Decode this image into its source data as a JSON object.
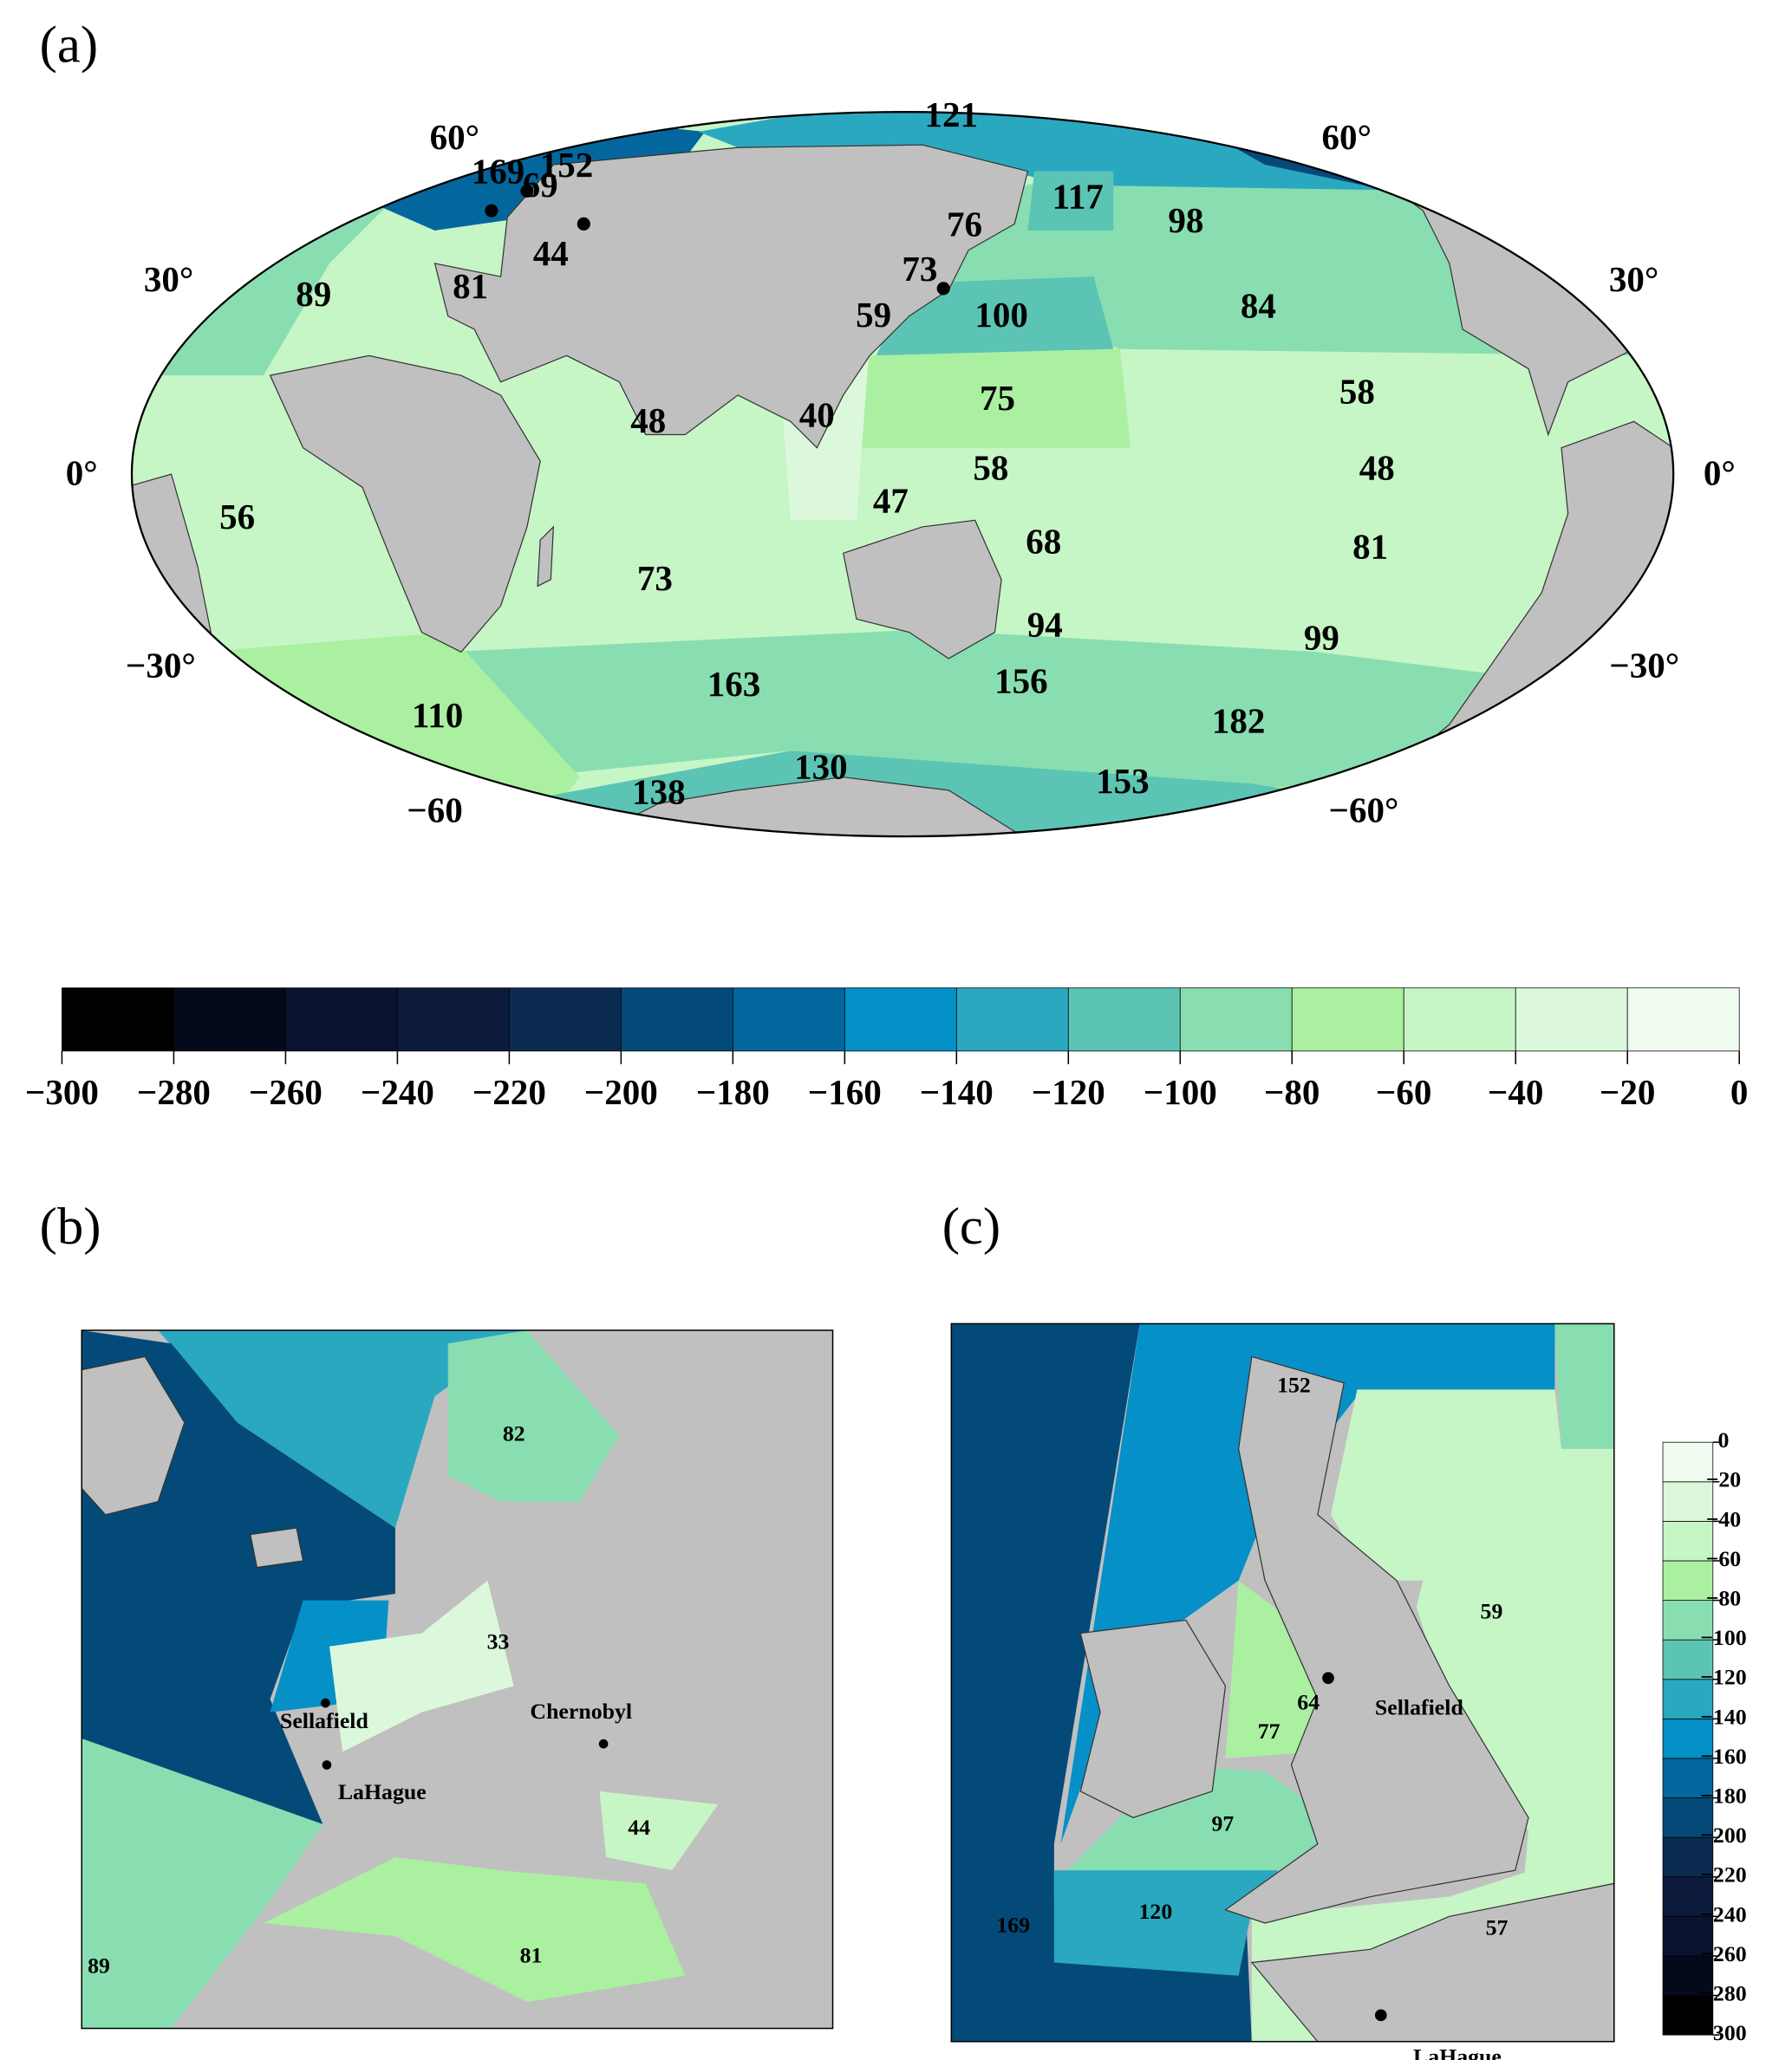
{
  "panels": {
    "a": {
      "label": "(a)",
      "lat_left": [
        "60°",
        "30°",
        "0°",
        "−30°",
        "−60"
      ],
      "lat_right": [
        "60°",
        "30°",
        "0°",
        "−30°",
        "−60°"
      ],
      "values": [
        121,
        169,
        69,
        152,
        44,
        76,
        117,
        98,
        89,
        81,
        73,
        59,
        100,
        84,
        58,
        48,
        40,
        75,
        58,
        48,
        56,
        47,
        68,
        73,
        81,
        94,
        99,
        163,
        156,
        110,
        182,
        130,
        138,
        153
      ]
    },
    "b": {
      "label": "(b)",
      "values": [
        82,
        33,
        44,
        81,
        89
      ],
      "places": [
        "Sellafield",
        "Chernobyl",
        "LaHague"
      ]
    },
    "c": {
      "label": "(c)",
      "values": [
        152,
        59,
        64,
        77,
        97,
        120,
        169,
        57
      ],
      "places": [
        "Sellafield",
        "LaHague"
      ]
    }
  },
  "colorbar": {
    "ticks": [
      {
        "value": -300,
        "label": "−300"
      },
      {
        "value": -280,
        "label": "−280"
      },
      {
        "value": -260,
        "label": "−260"
      },
      {
        "value": -240,
        "label": "−240"
      },
      {
        "value": -220,
        "label": "−220"
      },
      {
        "value": -200,
        "label": "−200"
      },
      {
        "value": -180,
        "label": "−180"
      },
      {
        "value": -160,
        "label": "−160"
      },
      {
        "value": -140,
        "label": "−140"
      },
      {
        "value": -120,
        "label": "−120"
      },
      {
        "value": -100,
        "label": "−100"
      },
      {
        "value": -80,
        "label": "−80"
      },
      {
        "value": -60,
        "label": "−60"
      },
      {
        "value": -40,
        "label": "−40"
      },
      {
        "value": -20,
        "label": "−20"
      },
      0
    ],
    "colors": [
      "#000000",
      "#050a1a",
      "#0a1230",
      "#0c1a3c",
      "#0a2a50",
      "#044a78",
      "#03679e",
      "#0590c8",
      "#2aa8c0",
      "#5cc4b4",
      "#88deb0",
      "#aaf0a0",
      "#c6f5c6",
      "#dcf8dc",
      "#effcef"
    ]
  }
}
